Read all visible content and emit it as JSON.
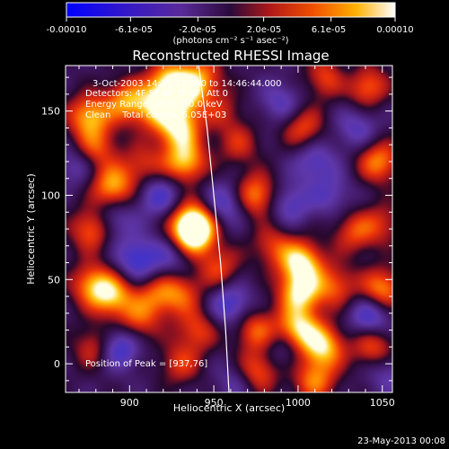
{
  "colorbar": {
    "ticks": [
      "-0.00010",
      "-6.1e-05",
      "-2.0e-05",
      "2.0e-05",
      "6.1e-05",
      "0.00010"
    ],
    "tick_values": [
      -0.0001,
      -6.1e-05,
      -2e-05,
      2e-05,
      6.1e-05,
      0.0001
    ],
    "range": [
      -0.0001,
      0.0001
    ],
    "unit_label": "(photons cm⁻² s⁻¹ asec⁻²)"
  },
  "chart_data": {
    "type": "heatmap",
    "title": "Reconstructed RHESSI Image",
    "xlabel": "Heliocentric X (arcsec)",
    "ylabel": "Heliocentric Y (arcsec)",
    "xlim": [
      862,
      1056
    ],
    "ylim": [
      -17,
      177
    ],
    "xticks": [
      900,
      950,
      1000,
      1050
    ],
    "yticks": [
      0,
      50,
      100,
      150
    ],
    "annotations": [
      "3-Oct-2003 14:39:12.000 to 14:46:44.000",
      "Detectors: 4F 5F 6F 7F 8F, Att 0",
      "Energy Range: 25.0 - 50.0 keV",
      "Clean    Total counts: 6.05E+03"
    ],
    "peak_label": "Position of Peak = [937,76]",
    "peak": [
      937,
      76
    ],
    "colormap": "rhessi (blue-purple-red-yellow-white)",
    "limb": [
      [
        941,
        177
      ],
      [
        946,
        140
      ],
      [
        950,
        100
      ],
      [
        954,
        60
      ],
      [
        957,
        20
      ],
      [
        959,
        -17
      ]
    ],
    "sources": [
      [
        937,
        76,
        1.0
      ],
      [
        938,
        84,
        0.9
      ],
      [
        933,
        120,
        0.85
      ],
      [
        929,
        140,
        0.9
      ],
      [
        931,
        160,
        0.8
      ],
      [
        923,
        168,
        0.7
      ],
      [
        943,
        170,
        0.6
      ],
      [
        955,
        150,
        0.35
      ],
      [
        915,
        152,
        0.7
      ],
      [
        898,
        156,
        0.7
      ],
      [
        876,
        147,
        0.8
      ],
      [
        880,
        128,
        0.55
      ],
      [
        890,
        105,
        0.8
      ],
      [
        908,
        118,
        0.45
      ],
      [
        878,
        80,
        0.7
      ],
      [
        890,
        40,
        0.75
      ],
      [
        878,
        47,
        0.7
      ],
      [
        915,
        40,
        0.5
      ],
      [
        930,
        42,
        0.55
      ],
      [
        940,
        20,
        0.5
      ],
      [
        953,
        57,
        0.5
      ],
      [
        975,
        100,
        0.75
      ],
      [
        985,
        70,
        0.45
      ],
      [
        1002,
        60,
        0.95
      ],
      [
        1001,
        42,
        0.9
      ],
      [
        1022,
        46,
        0.55
      ],
      [
        1050,
        44,
        0.75
      ],
      [
        1048,
        120,
        0.7
      ],
      [
        1040,
        165,
        0.7
      ],
      [
        1018,
        170,
        0.65
      ],
      [
        1003,
        140,
        0.55
      ],
      [
        1000,
        20,
        0.95
      ],
      [
        1015,
        10,
        0.85
      ],
      [
        1010,
        -10,
        0.65
      ],
      [
        975,
        -5,
        0.7
      ],
      [
        975,
        20,
        0.6
      ],
      [
        1045,
        10,
        0.6
      ],
      [
        880,
        10,
        0.55
      ],
      [
        930,
        0,
        0.45
      ],
      [
        1033,
        78,
        0.5
      ],
      [
        1050,
        83,
        0.4
      ],
      [
        965,
        130,
        0.4
      ],
      [
        905,
        25,
        0.5
      ],
      [
        957,
        95,
        -0.5
      ],
      [
        905,
        62,
        -0.6
      ],
      [
        893,
        10,
        -0.7
      ],
      [
        927,
        65,
        -0.4
      ],
      [
        960,
        35,
        -0.55
      ],
      [
        1043,
        28,
        -0.6
      ],
      [
        1010,
        120,
        -0.45
      ],
      [
        995,
        95,
        -0.45
      ],
      [
        1020,
        100,
        -0.35
      ],
      [
        890,
        85,
        -0.45
      ],
      [
        917,
        100,
        -0.5
      ],
      [
        1035,
        140,
        -0.4
      ],
      [
        992,
        10,
        -0.35
      ],
      [
        990,
        155,
        -0.4
      ],
      [
        868,
        118,
        -0.35
      ],
      [
        1053,
        -5,
        -0.35
      ],
      [
        965,
        -10,
        -0.4
      ],
      [
        1028,
        170,
        -0.35
      ]
    ]
  },
  "footer": {
    "date": "23-May-2013 00:08"
  }
}
